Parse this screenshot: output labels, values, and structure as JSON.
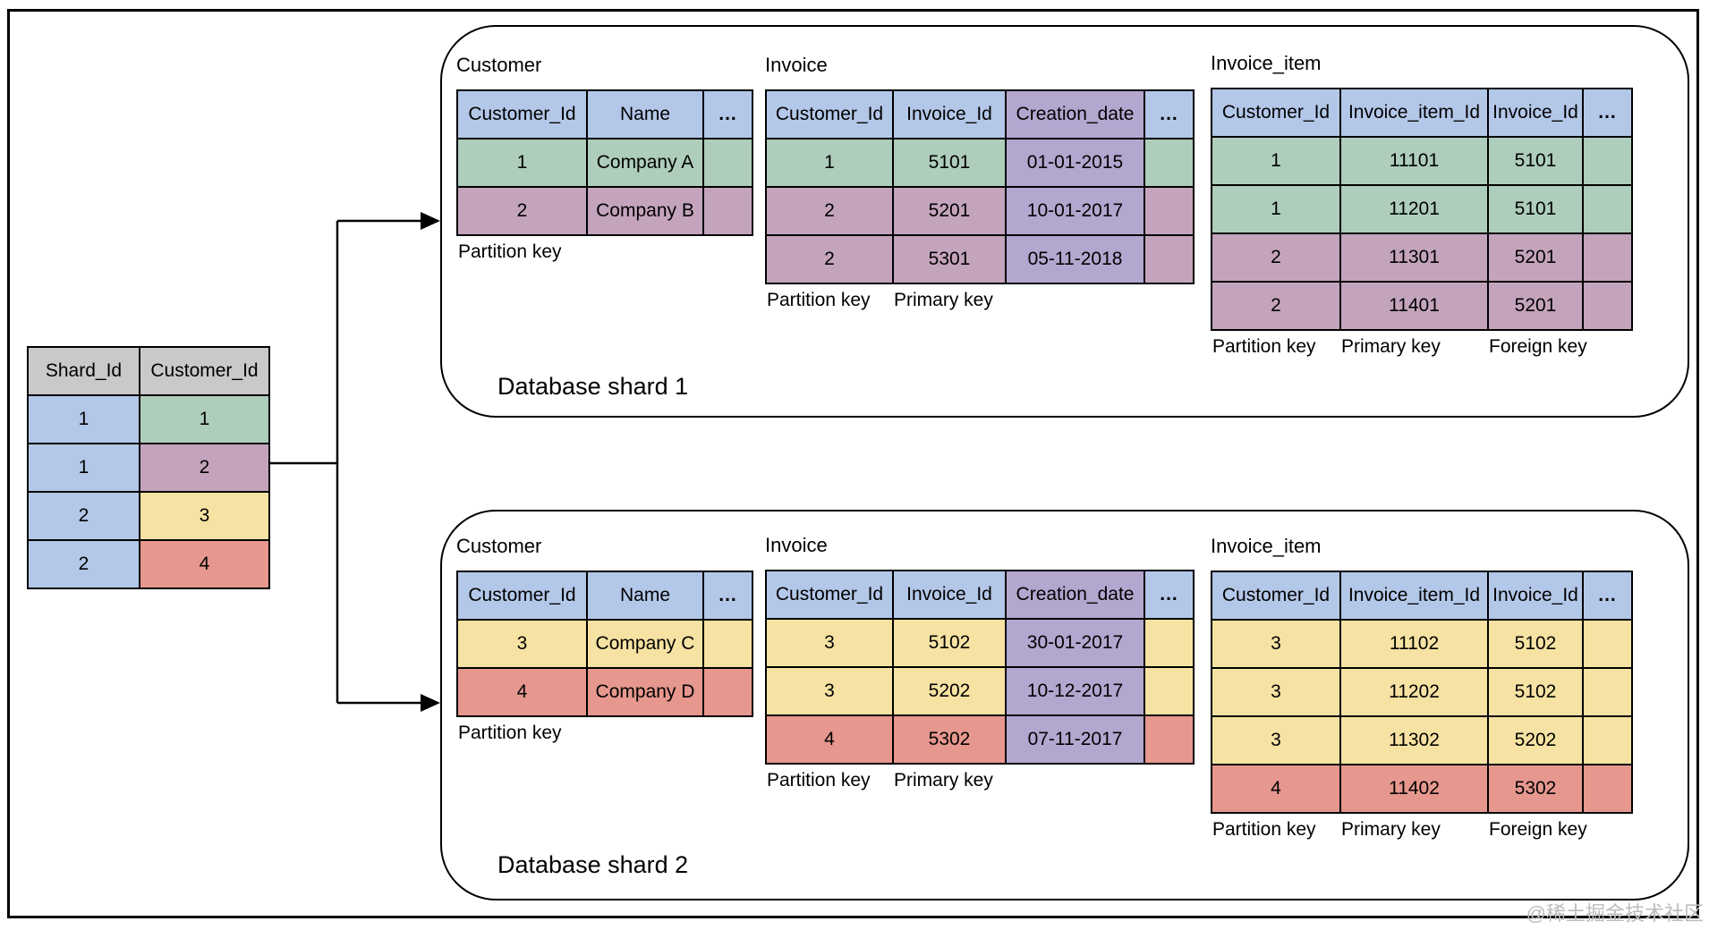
{
  "watermark": "@稀土掘金技术社区",
  "colors": {
    "blue": "#b3c7e8",
    "gray": "#c9c9c9",
    "green": "#aecdbb",
    "mauve": "#c4a4bd",
    "violet": "#b3a6cf",
    "yellow": "#f6e2a2",
    "red": "#e6978e"
  },
  "mapping": {
    "headers": [
      "Shard_Id",
      "Customer_Id"
    ],
    "header_color": "gray",
    "rows": [
      [
        "1",
        "1"
      ],
      [
        "1",
        "2"
      ],
      [
        "2",
        "3"
      ],
      [
        "2",
        "4"
      ]
    ],
    "row_colors": [
      "green",
      "mauve",
      "yellow",
      "red"
    ],
    "column_overrides": {
      "0": "blue"
    }
  },
  "shards": [
    {
      "label": "Database shard 1",
      "tables": [
        {
          "title": "Customer",
          "headers": [
            "Customer_Id",
            "Name",
            "..."
          ],
          "header_color": "blue",
          "rows": [
            [
              "1",
              "Company A",
              ""
            ],
            [
              "2",
              "Company B",
              ""
            ]
          ],
          "row_colors": [
            "green",
            "mauve"
          ],
          "keys": [
            {
              "label": "Partition key",
              "col": 0
            }
          ]
        },
        {
          "title": "Invoice",
          "headers": [
            "Customer_Id",
            "Invoice_Id",
            "Creation_date",
            "..."
          ],
          "header_color": "blue",
          "header_overrides": {
            "2": "violet"
          },
          "rows": [
            [
              "1",
              "5101",
              "01-01-2015",
              ""
            ],
            [
              "2",
              "5201",
              "10-01-2017",
              ""
            ],
            [
              "2",
              "5301",
              "05-11-2018",
              ""
            ]
          ],
          "row_colors": [
            "green",
            "mauve",
            "mauve"
          ],
          "column_overrides": {
            "2": "violet"
          },
          "keys": [
            {
              "label": "Partition key",
              "col": 0
            },
            {
              "label": "Primary key",
              "col": 1
            }
          ]
        },
        {
          "title": "Invoice_item",
          "headers": [
            "Customer_Id",
            "Invoice_item_Id",
            "Invoice_Id",
            "..."
          ],
          "header_color": "blue",
          "rows": [
            [
              "1",
              "11101",
              "5101",
              ""
            ],
            [
              "1",
              "11201",
              "5101",
              ""
            ],
            [
              "2",
              "11301",
              "5201",
              ""
            ],
            [
              "2",
              "11401",
              "5201",
              ""
            ]
          ],
          "row_colors": [
            "green",
            "green",
            "mauve",
            "mauve"
          ],
          "keys": [
            {
              "label": "Partition key",
              "col": 0
            },
            {
              "label": "Primary key",
              "col": 1
            },
            {
              "label": "Foreign key",
              "col": 2
            }
          ]
        }
      ]
    },
    {
      "label": "Database shard 2",
      "tables": [
        {
          "title": "Customer",
          "headers": [
            "Customer_Id",
            "Name",
            "..."
          ],
          "header_color": "blue",
          "rows": [
            [
              "3",
              "Company C",
              ""
            ],
            [
              "4",
              "Company D",
              ""
            ]
          ],
          "row_colors": [
            "yellow",
            "red"
          ],
          "keys": [
            {
              "label": "Partition key",
              "col": 0
            }
          ]
        },
        {
          "title": "Invoice",
          "headers": [
            "Customer_Id",
            "Invoice_Id",
            "Creation_date",
            "..."
          ],
          "header_color": "blue",
          "header_overrides": {
            "2": "violet"
          },
          "rows": [
            [
              "3",
              "5102",
              "30-01-2017",
              ""
            ],
            [
              "3",
              "5202",
              "10-12-2017",
              ""
            ],
            [
              "4",
              "5302",
              "07-11-2017",
              ""
            ]
          ],
          "row_colors": [
            "yellow",
            "yellow",
            "red"
          ],
          "column_overrides": {
            "2": "violet"
          },
          "keys": [
            {
              "label": "Partition key",
              "col": 0
            },
            {
              "label": "Primary key",
              "col": 1
            }
          ]
        },
        {
          "title": "Invoice_item",
          "headers": [
            "Customer_Id",
            "Invoice_item_Id",
            "Invoice_Id",
            "..."
          ],
          "header_color": "blue",
          "rows": [
            [
              "3",
              "11102",
              "5102",
              ""
            ],
            [
              "3",
              "11202",
              "5102",
              ""
            ],
            [
              "3",
              "11302",
              "5202",
              ""
            ],
            [
              "4",
              "11402",
              "5302",
              ""
            ]
          ],
          "row_colors": [
            "yellow",
            "yellow",
            "yellow",
            "red"
          ],
          "keys": [
            {
              "label": "Partition key",
              "col": 0
            },
            {
              "label": "Primary key",
              "col": 1
            },
            {
              "label": "Foreign key",
              "col": 2
            }
          ]
        }
      ]
    }
  ]
}
